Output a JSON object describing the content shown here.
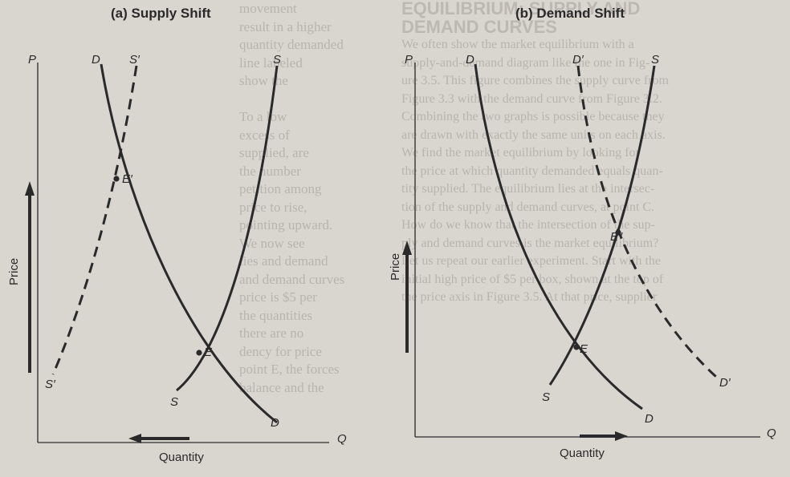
{
  "background_text": {
    "left": [
      "movement",
      "result in a higher",
      "quantity demanded",
      "line labeled",
      "show the",
      "",
      "To a low",
      "excess of",
      "supplied, are",
      "the number",
      "petition among",
      "price to rise,",
      "pointing upward.",
      "We now see",
      "lies and demand",
      "and demand curves",
      "price is $5 per",
      "the quantities",
      "there are no",
      "dency for price",
      "point E, the forces",
      "balance and the"
    ],
    "right": [
      "EQUILIBRIUM: SUPPLY AND",
      "DEMAND CURVES",
      "We often show the market equilibrium with a",
      "supply-and-demand diagram like the one in Fig-",
      "ure 3.5. This figure combines the supply curve from",
      "Figure 3.3 with the demand curve from Figure 3.2.",
      "Combining the two graphs is possible because they",
      "are drawn with exactly the same units on each axis.",
      "We find the market equilibrium by looking for",
      "the price at which quantity demanded equals quan-",
      "tity supplied. The equilibrium lies at the intersec-",
      "tion of the supply and demand curves, at point C.",
      "How do we know that the intersection of the sup-",
      "ply and demand curves is the market equilibrium?",
      "Let us repeat our earlier experiment. Start with the",
      "initial high price of $5 per box, shown at the top of",
      "the price axis in Figure 3.5. At that price, supplier"
    ]
  },
  "panels": [
    {
      "id": "supply-shift",
      "title": "(a) Supply Shift",
      "y_axis_symbol": "P",
      "x_axis_symbol": "Q",
      "y_axis_label": "Price",
      "x_axis_label": "Quantity",
      "curves": [
        {
          "name": "D",
          "role": "demand",
          "style": "solid",
          "top_label": "D",
          "bottom_label": "D"
        },
        {
          "name": "S",
          "role": "supply",
          "style": "solid",
          "top_label": "S",
          "bottom_label": "S"
        },
        {
          "name": "S'",
          "role": "shifted supply",
          "style": "dashed",
          "top_label": "S′",
          "bottom_label": "S′"
        }
      ],
      "points": [
        {
          "name": "E",
          "label": "E",
          "on": [
            "D",
            "S"
          ]
        },
        {
          "name": "E'",
          "label": "E′",
          "on": [
            "D",
            "S'"
          ]
        }
      ],
      "arrows": [
        "price rises",
        "quantity falls"
      ]
    },
    {
      "id": "demand-shift",
      "title": "(b) Demand Shift",
      "y_axis_symbol": "P",
      "x_axis_symbol": "Q",
      "y_axis_label": "Price",
      "x_axis_label": "Quantity",
      "curves": [
        {
          "name": "D",
          "role": "demand",
          "style": "solid",
          "top_label": "D",
          "bottom_label": "D"
        },
        {
          "name": "S",
          "role": "supply",
          "style": "solid",
          "top_label": "S",
          "bottom_label": "S"
        },
        {
          "name": "D'",
          "role": "shifted demand",
          "style": "dashed",
          "top_label": "D′",
          "bottom_label": "D′"
        }
      ],
      "points": [
        {
          "name": "E",
          "label": "E",
          "on": [
            "D",
            "S"
          ]
        },
        {
          "name": "E''",
          "label": "E″",
          "on": [
            "D'",
            "S"
          ]
        }
      ],
      "arrows": [
        "price rises",
        "quantity rises"
      ]
    }
  ],
  "chart_data": [
    {
      "type": "line",
      "title": "(a) Supply Shift",
      "xlabel": "Quantity",
      "ylabel": "Price",
      "series": [
        {
          "name": "D"
        },
        {
          "name": "S"
        },
        {
          "name": "S′"
        }
      ],
      "annotations": [
        "E",
        "E′"
      ],
      "grid": false
    },
    {
      "type": "line",
      "title": "(b) Demand Shift",
      "xlabel": "Quantity",
      "ylabel": "Price",
      "series": [
        {
          "name": "D"
        },
        {
          "name": "S"
        },
        {
          "name": "D′"
        }
      ],
      "annotations": [
        "E",
        "E″"
      ],
      "grid": false
    }
  ],
  "colors": {
    "paper": "#d9d6d0",
    "ink": "#2a2a2a",
    "faded_text": "#b9b4ad"
  }
}
